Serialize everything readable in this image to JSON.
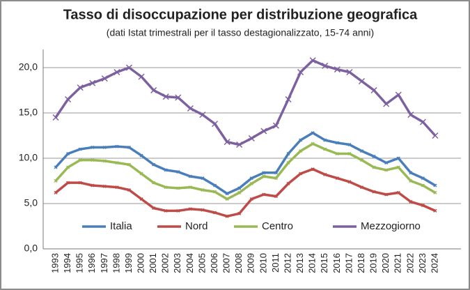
{
  "chart_data": {
    "type": "line",
    "title": "Tasso di disoccupazione per distribuzione geografica",
    "subtitle": "(dati Istat trimestrali  per il tasso destagionalizzato, 15-74 anni)",
    "categories": [
      "1993",
      "1994",
      "1995",
      "1996",
      "1997",
      "1998",
      "1999",
      "2000",
      "2001",
      "2002",
      "2003",
      "2004",
      "2005",
      "2006",
      "2007",
      "2008",
      "2009",
      "2010",
      "2011",
      "2012",
      "2013",
      "2014",
      "2015",
      "2016",
      "2017",
      "2018",
      "2019",
      "2020",
      "2021",
      "2022",
      "2023",
      "2024"
    ],
    "series": [
      {
        "name": "Italia",
        "color": "#4a7ebb",
        "values": [
          9.0,
          10.5,
          11.0,
          11.2,
          11.2,
          11.3,
          11.2,
          10.3,
          9.3,
          8.7,
          8.5,
          8.0,
          7.8,
          7.0,
          6.1,
          6.7,
          7.8,
          8.4,
          8.4,
          10.5,
          12.0,
          12.8,
          12.0,
          11.7,
          11.5,
          10.8,
          10.2,
          9.5,
          10.0,
          8.4,
          7.8,
          7.0
        ]
      },
      {
        "name": "Nord",
        "color": "#be4b48",
        "values": [
          6.2,
          7.3,
          7.3,
          7.0,
          6.9,
          6.8,
          6.5,
          5.5,
          4.5,
          4.2,
          4.2,
          4.4,
          4.3,
          4.0,
          3.6,
          3.9,
          5.5,
          6.0,
          5.8,
          7.2,
          8.3,
          8.8,
          8.2,
          7.8,
          7.4,
          6.8,
          6.3,
          6.0,
          6.2,
          5.2,
          4.8,
          4.2
        ]
      },
      {
        "name": "Centro",
        "color": "#98b954",
        "values": [
          7.5,
          9.0,
          9.8,
          9.8,
          9.7,
          9.5,
          9.3,
          8.3,
          7.3,
          6.8,
          6.7,
          6.8,
          6.5,
          6.3,
          5.5,
          6.2,
          7.2,
          8.0,
          7.8,
          9.5,
          10.8,
          11.6,
          11.0,
          10.5,
          10.5,
          9.8,
          9.0,
          8.7,
          9.0,
          7.5,
          7.0,
          6.2
        ]
      },
      {
        "name": "Mezzogiorno",
        "color": "#7d60a0",
        "values": [
          14.5,
          16.5,
          17.8,
          18.3,
          18.8,
          19.5,
          20.0,
          19.0,
          17.5,
          16.8,
          16.7,
          15.5,
          14.8,
          13.8,
          11.8,
          11.5,
          12.2,
          13.0,
          13.6,
          16.5,
          19.5,
          20.8,
          20.2,
          19.8,
          19.5,
          18.5,
          17.5,
          16.0,
          17.0,
          14.8,
          14.0,
          12.5
        ]
      }
    ],
    "ylim": [
      0,
      22
    ],
    "yticks": [
      {
        "value": 0,
        "label": "0,0"
      },
      {
        "value": 5,
        "label": "5,0"
      },
      {
        "value": 10,
        "label": "10,0"
      },
      {
        "value": 15,
        "label": "15,0"
      },
      {
        "value": 20,
        "label": "20,0"
      }
    ],
    "grid": true
  }
}
